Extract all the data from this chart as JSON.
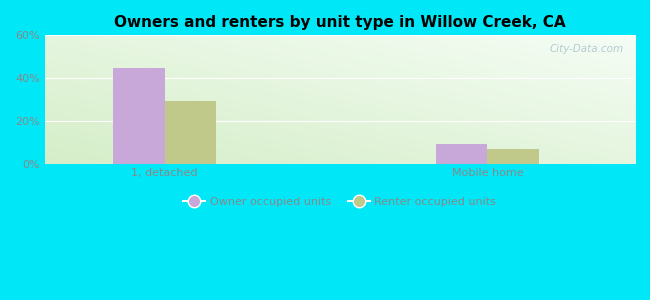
{
  "title": "Owners and renters by unit type in Willow Creek, CA",
  "categories": [
    "1, detached",
    "Mobile home"
  ],
  "owner_values": [
    44.5,
    9.0
  ],
  "renter_values": [
    29.5,
    7.0
  ],
  "owner_color": "#c8a8d8",
  "renter_color": "#c0c88a",
  "owner_label": "Owner occupied units",
  "renter_label": "Renter occupied units",
  "ylim": [
    0,
    60
  ],
  "yticks": [
    0,
    20,
    40,
    60
  ],
  "ytick_labels": [
    "0%",
    "20%",
    "40%",
    "60%"
  ],
  "background_color": "#00e8f8",
  "bar_width": 0.28,
  "group_positions": [
    0.75,
    2.5
  ],
  "xlim": [
    0.1,
    3.3
  ],
  "watermark": "City-Data.com"
}
